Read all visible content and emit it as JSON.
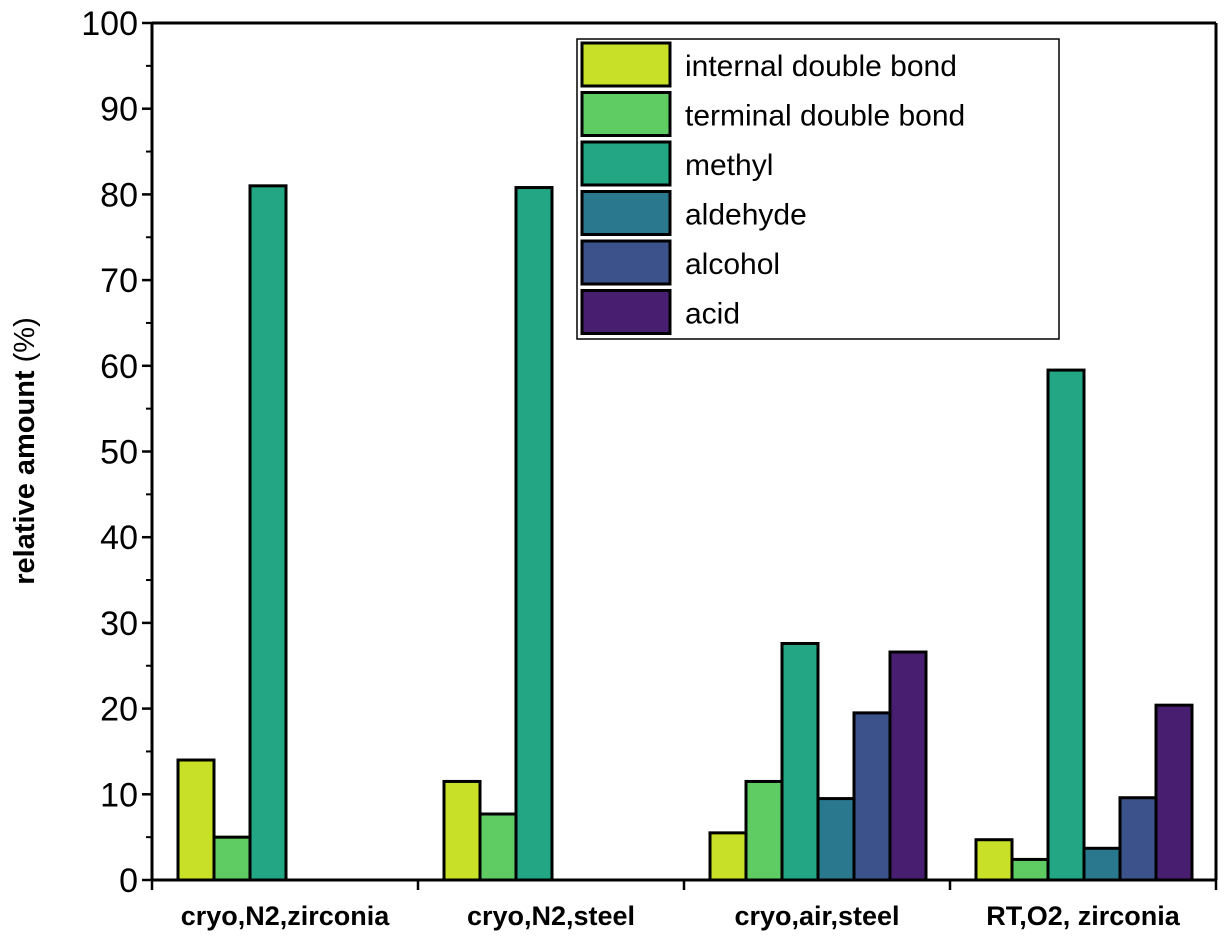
{
  "chart_data": {
    "type": "bar",
    "ylabel_bold": "relative amount",
    "ylabel_unit": " (%)",
    "ylim": [
      0,
      100
    ],
    "yticks": [
      0,
      10,
      20,
      30,
      40,
      50,
      60,
      70,
      80,
      90,
      100
    ],
    "categories": [
      "cryo,N2,zirconia",
      "cryo,N2,steel",
      "cryo,air,steel",
      "RT,O2, zirconia"
    ],
    "legend_position": "top-right",
    "series": [
      {
        "name": "internal double bond",
        "color": "#c8e027",
        "values": [
          14.0,
          11.5,
          5.5,
          4.7
        ]
      },
      {
        "name": "terminal double bond",
        "color": "#5ecb63",
        "values": [
          5.0,
          7.7,
          11.5,
          2.4
        ]
      },
      {
        "name": "methyl",
        "color": "#22a684",
        "values": [
          81.0,
          80.8,
          27.6,
          59.5
        ]
      },
      {
        "name": "aldehyde",
        "color": "#2a788e",
        "values": [
          0,
          0,
          9.5,
          3.7
        ]
      },
      {
        "name": "alcohol",
        "color": "#3b528b",
        "values": [
          0,
          0,
          19.5,
          9.6
        ]
      },
      {
        "name": "acid",
        "color": "#481f70",
        "values": [
          0,
          0,
          26.6,
          20.4
        ]
      }
    ]
  }
}
